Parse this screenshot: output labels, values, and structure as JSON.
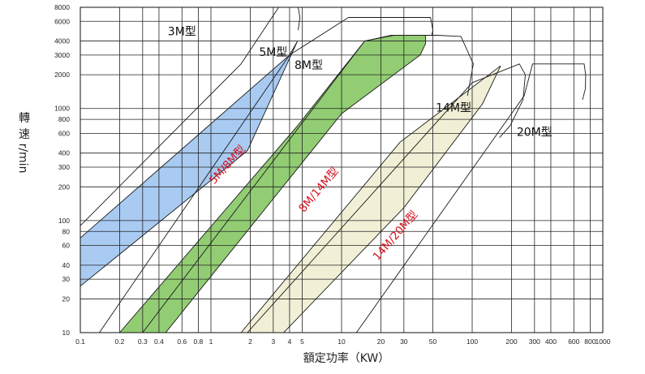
{
  "chart_data": {
    "type": "area",
    "xlabel": "額定功率（KW）",
    "ylabel_chars": [
      "轉",
      "速"
    ],
    "ylabel_unit": "r/min",
    "x_scale": "log",
    "y_scale": "log",
    "xlim": [
      0.1,
      1000
    ],
    "ylim": [
      10,
      8000
    ],
    "grid": true,
    "x_ticks": [
      "0.1",
      "0.2",
      "0.3",
      "0.4",
      "0.6",
      "0.8",
      "1",
      "2",
      "3",
      "4",
      "5",
      "10",
      "20",
      "30",
      "50",
      "100",
      "200",
      "300",
      "400",
      "600",
      "800",
      "1000"
    ],
    "y_ticks": [
      "10",
      "20",
      "30",
      "40",
      "60",
      "80",
      "100",
      "200",
      "300",
      "400",
      "600",
      "800",
      "1000",
      "2000",
      "3000",
      "4000",
      "6000",
      "8000"
    ],
    "type_labels": [
      {
        "name": "3M型",
        "x": 0.6,
        "y": 4500
      },
      {
        "name": "5M型",
        "x": 3.0,
        "y": 2950
      },
      {
        "name": "8M型",
        "x": 5.6,
        "y": 2250
      },
      {
        "name": "14M型",
        "x": 72,
        "y": 940
      },
      {
        "name": "20M型",
        "x": 300,
        "y": 570
      }
    ],
    "type_outlines": [
      {
        "name": "3M",
        "points": [
          [
            0.1,
            90
          ],
          [
            1.7,
            2500
          ],
          [
            3.3,
            8000
          ],
          [
            4.65,
            8000
          ],
          [
            4.8,
            6500
          ],
          [
            4.65,
            5000
          ]
        ]
      },
      {
        "name": "5M",
        "points": [
          [
            0.14,
            10
          ],
          [
            4.0,
            3000
          ],
          [
            11.3,
            6500
          ],
          [
            48,
            6500
          ],
          [
            50,
            5000
          ],
          [
            49,
            4500
          ]
        ]
      },
      {
        "name": "8M",
        "points": [
          [
            0.3,
            10
          ],
          [
            4.8,
            700
          ],
          [
            15,
            4000
          ],
          [
            25,
            4500
          ],
          [
            54,
            4500
          ],
          [
            82,
            4400
          ],
          [
            102,
            2500
          ],
          [
            92,
            1300
          ]
        ]
      },
      {
        "name": "14M",
        "points": [
          [
            1.9,
            10
          ],
          [
            100,
            1700
          ],
          [
            230,
            2500
          ],
          [
            255,
            2000
          ],
          [
            245,
            1200
          ],
          [
            195,
            700
          ],
          [
            162,
            550
          ]
        ]
      },
      {
        "name": "20M",
        "points": [
          [
            13,
            10
          ],
          [
            250,
            1300
          ],
          [
            290,
            2500
          ],
          [
            720,
            2500
          ],
          [
            740,
            2000
          ],
          [
            735,
            1500
          ],
          [
            700,
            1200
          ]
        ]
      }
    ],
    "series": [
      {
        "name": "5M/8M型",
        "color": "#a9cbf2",
        "upper": [
          [
            0.1,
            70
          ],
          [
            4.0,
            3000
          ],
          [
            4.6,
            4000
          ]
        ],
        "lower": [
          [
            0.1,
            26
          ],
          [
            1.9,
            420
          ],
          [
            4.6,
            4000
          ]
        ]
      },
      {
        "name": "8M/14M型",
        "color": "#92cd73",
        "upper": [
          [
            0.2,
            10
          ],
          [
            4.6,
            700
          ],
          [
            15,
            4000
          ],
          [
            24,
            4500
          ],
          [
            44,
            4500
          ],
          [
            44,
            3800
          ]
        ],
        "lower": [
          [
            0.45,
            10
          ],
          [
            10,
            900
          ],
          [
            40,
            3000
          ],
          [
            44,
            3800
          ]
        ]
      },
      {
        "name": "14M/20M型",
        "color": "#f1f0d6",
        "upper": [
          [
            1.7,
            10
          ],
          [
            28,
            500
          ],
          [
            165,
            2400
          ]
        ],
        "lower": [
          [
            3.6,
            10
          ],
          [
            30,
            130
          ],
          [
            120,
            1100
          ],
          [
            165,
            2400
          ]
        ]
      }
    ],
    "band_labels": [
      {
        "name": "5M/8M型",
        "x": 1.4,
        "y": 300,
        "angle": -48
      },
      {
        "name": "8M/14M型",
        "x": 7.0,
        "y": 180,
        "angle": -50
      },
      {
        "name": "14M/20M型",
        "x": 27,
        "y": 70,
        "angle": -49
      }
    ]
  }
}
